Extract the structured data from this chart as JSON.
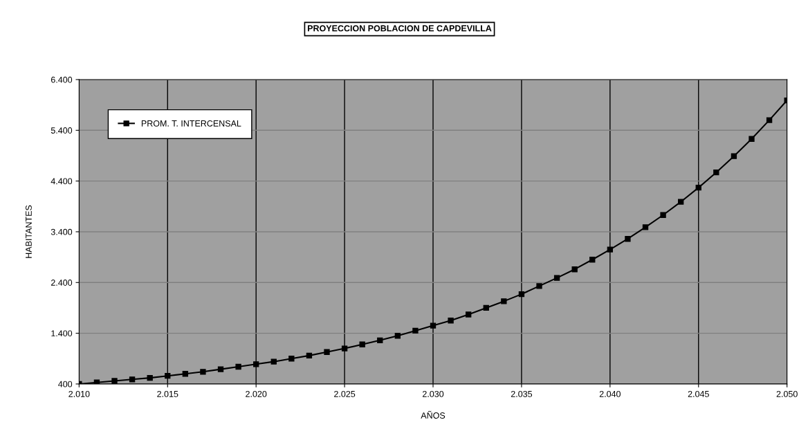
{
  "chart_data": {
    "type": "line",
    "title": "PROYECCION POBLACION DE CAPDEVILLA",
    "xlabel": "AÑOS",
    "ylabel": "HABITANTES",
    "x": [
      2010,
      2011,
      2012,
      2013,
      2014,
      2015,
      2016,
      2017,
      2018,
      2019,
      2020,
      2021,
      2022,
      2023,
      2024,
      2025,
      2026,
      2027,
      2028,
      2029,
      2030,
      2031,
      2032,
      2033,
      2034,
      2035,
      2036,
      2037,
      2038,
      2039,
      2040,
      2041,
      2042,
      2043,
      2044,
      2045,
      2046,
      2047,
      2048,
      2049,
      2050
    ],
    "series": [
      {
        "name": "PROM. T. INTERCENSAL",
        "color": "#000000",
        "values": [
          400,
          430,
          460,
          490,
          520,
          560,
          600,
          640,
          690,
          740,
          790,
          840,
          900,
          960,
          1030,
          1100,
          1180,
          1260,
          1350,
          1450,
          1550,
          1650,
          1770,
          1900,
          2030,
          2170,
          2330,
          2490,
          2660,
          2850,
          3050,
          3260,
          3490,
          3730,
          3990,
          4270,
          4570,
          4890,
          5230,
          5600,
          5990
        ]
      }
    ],
    "xlim": [
      2010,
      2050
    ],
    "xticks": [
      {
        "value": 2010,
        "label": "2.010"
      },
      {
        "value": 2015,
        "label": "2.015"
      },
      {
        "value": 2020,
        "label": "2.020"
      },
      {
        "value": 2025,
        "label": "2.025"
      },
      {
        "value": 2030,
        "label": "2.030"
      },
      {
        "value": 2035,
        "label": "2.035"
      },
      {
        "value": 2040,
        "label": "2.040"
      },
      {
        "value": 2045,
        "label": "2.045"
      },
      {
        "value": 2050,
        "label": "2.050"
      }
    ],
    "ylim": [
      400,
      6400
    ],
    "yticks": [
      {
        "value": 400,
        "label": "400"
      },
      {
        "value": 1400,
        "label": "1.400"
      },
      {
        "value": 2400,
        "label": "2.400"
      },
      {
        "value": 3400,
        "label": "3.400"
      },
      {
        "value": 4400,
        "label": "4.400"
      },
      {
        "value": 5400,
        "label": "5.400"
      },
      {
        "value": 6400,
        "label": "6.400"
      }
    ],
    "grid": true,
    "legend": "top left",
    "marker": "square",
    "line_style": "solid"
  }
}
